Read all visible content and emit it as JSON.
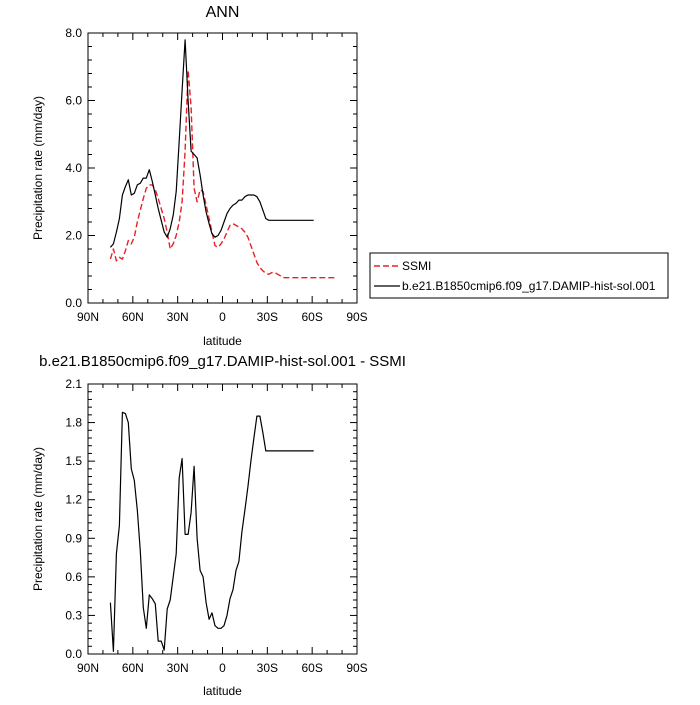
{
  "chart_data": [
    {
      "type": "line",
      "title": "ANN",
      "xlabel": "latitude",
      "ylabel": "Precipitation rate (mm/day)",
      "xlim": [
        90,
        -90
      ],
      "ylim": [
        0,
        8
      ],
      "x_ticks": [
        {
          "value": 90,
          "label": "90N"
        },
        {
          "value": 60,
          "label": "60N"
        },
        {
          "value": 30,
          "label": "30N"
        },
        {
          "value": 0,
          "label": "0"
        },
        {
          "value": -30,
          "label": "30S"
        },
        {
          "value": -60,
          "label": "60S"
        },
        {
          "value": -90,
          "label": "90S"
        }
      ],
      "y_ticks": [
        {
          "value": 0,
          "label": "0.0"
        },
        {
          "value": 2,
          "label": "2.0"
        },
        {
          "value": 4,
          "label": "4.0"
        },
        {
          "value": 6,
          "label": "6.0"
        },
        {
          "value": 8,
          "label": "8.0"
        }
      ],
      "legend_position": "right",
      "series": [
        {
          "name": "SSMI",
          "color": "#e8202a",
          "dashed": true,
          "x": [
            75,
            73,
            71,
            69,
            67,
            65,
            63,
            61,
            59,
            57,
            55,
            53,
            51,
            49,
            47,
            45,
            43,
            41,
            39,
            37,
            35,
            33,
            31,
            29,
            27,
            25,
            23,
            21,
            19,
            17,
            15,
            13,
            11,
            9,
            7,
            5,
            3,
            1,
            -1,
            -3,
            -5,
            -7,
            -9,
            -11,
            -13,
            -15,
            -17,
            -19,
            -21,
            -23,
            -25,
            -27,
            -29,
            -31,
            -33,
            -35,
            -37,
            -39,
            -41,
            -43,
            -45,
            -47,
            -49,
            -51,
            -53,
            -55,
            -57,
            -59,
            -61,
            -63,
            -65,
            -67,
            -69,
            -71,
            -73,
            -75
          ],
          "values": [
            1.3,
            1.6,
            1.25,
            1.35,
            1.3,
            1.55,
            1.85,
            1.75,
            1.95,
            2.4,
            2.75,
            3.1,
            3.4,
            3.5,
            3.5,
            3.35,
            3.1,
            2.8,
            2.5,
            2.1,
            1.6,
            1.75,
            2.0,
            2.4,
            3.0,
            4.5,
            6.9,
            5.8,
            3.4,
            3.0,
            3.35,
            3.3,
            2.9,
            2.5,
            2.1,
            1.7,
            1.65,
            1.75,
            1.9,
            2.1,
            2.3,
            2.35,
            2.3,
            2.25,
            2.2,
            2.1,
            1.95,
            1.7,
            1.45,
            1.2,
            1.05,
            0.95,
            0.88,
            0.85,
            0.9,
            0.9,
            0.85,
            0.8,
            0.75,
            0.75,
            0.75,
            0.75,
            0.75,
            0.75,
            0.75,
            0.75,
            0.75,
            0.75,
            0.75,
            0.75,
            0.75,
            0.75,
            0.75,
            0.75,
            0.75,
            0.75
          ]
        },
        {
          "name": "b.e21.B1850cmip6.f09_g17.DAMIP-hist-sol.001",
          "color": "#000000",
          "dashed": false,
          "x": [
            75,
            73,
            71,
            69,
            67,
            65,
            63,
            61,
            59,
            57,
            55,
            53,
            51,
            49,
            47,
            45,
            43,
            41,
            39,
            37,
            35,
            33,
            31,
            29,
            27,
            25,
            23,
            21,
            19,
            17,
            15,
            13,
            11,
            9,
            7,
            5,
            3,
            1,
            -1,
            -3,
            -5,
            -7,
            -9,
            -11,
            -13,
            -15,
            -17,
            -19,
            -21,
            -23,
            -25,
            -27,
            -29,
            -31,
            -33,
            -35,
            -37,
            -39,
            -41,
            -43,
            -45,
            -47,
            -49,
            -51,
            -53,
            -55,
            -57,
            -59,
            -61
          ],
          "values": [
            1.65,
            1.75,
            2.1,
            2.5,
            3.2,
            3.45,
            3.65,
            3.2,
            3.25,
            3.5,
            3.55,
            3.7,
            3.7,
            3.95,
            3.6,
            3.2,
            2.8,
            2.45,
            2.1,
            1.95,
            2.2,
            2.6,
            3.3,
            4.8,
            6.3,
            7.8,
            6.0,
            4.5,
            4.4,
            4.3,
            3.8,
            3.2,
            2.7,
            2.35,
            2.05,
            1.95,
            2.0,
            2.15,
            2.4,
            2.65,
            2.8,
            2.9,
            2.95,
            3.05,
            3.05,
            3.15,
            3.2,
            3.2,
            3.2,
            3.15,
            3.0,
            2.75,
            2.5,
            2.45,
            2.45,
            2.45,
            2.45,
            2.45,
            2.45,
            2.45,
            2.45,
            2.45,
            2.45,
            2.45,
            2.45,
            2.45,
            2.45,
            2.45,
            2.45
          ]
        }
      ]
    },
    {
      "type": "line",
      "title": "b.e21.B1850cmip6.f09_g17.DAMIP-hist-sol.001 - SSMI",
      "xlabel": "latitude",
      "ylabel": "Precipitation rate (mm/day)",
      "xlim": [
        90,
        -90
      ],
      "ylim": [
        0,
        2.1
      ],
      "x_ticks": [
        {
          "value": 90,
          "label": "90N"
        },
        {
          "value": 60,
          "label": "60N"
        },
        {
          "value": 30,
          "label": "30N"
        },
        {
          "value": 0,
          "label": "0"
        },
        {
          "value": -30,
          "label": "30S"
        },
        {
          "value": -60,
          "label": "60S"
        },
        {
          "value": -90,
          "label": "90S"
        }
      ],
      "y_ticks": [
        {
          "value": 0,
          "label": "0.0"
        },
        {
          "value": 0.3,
          "label": "0.3"
        },
        {
          "value": 0.6,
          "label": "0.6"
        },
        {
          "value": 0.9,
          "label": "0.9"
        },
        {
          "value": 1.2,
          "label": "1.2"
        },
        {
          "value": 1.5,
          "label": "1.5"
        },
        {
          "value": 1.8,
          "label": "1.8"
        },
        {
          "value": 2.1,
          "label": "2.1"
        }
      ],
      "series": [
        {
          "color": "#000000",
          "dashed": false,
          "x": [
            75,
            73,
            71,
            69,
            67,
            65,
            63,
            61,
            59,
            57,
            55,
            53,
            51,
            49,
            47,
            45,
            43,
            41,
            39,
            37,
            35,
            33,
            31,
            29,
            27,
            25,
            23,
            21,
            19,
            17,
            15,
            13,
            11,
            9,
            7,
            5,
            3,
            1,
            -1,
            -3,
            -5,
            -7,
            -9,
            -11,
            -13,
            -15,
            -17,
            -19,
            -21,
            -23,
            -25,
            -27,
            -29,
            -31,
            -33,
            -35,
            -37,
            -39,
            -41,
            -43,
            -45,
            -47,
            -49,
            -51,
            -53,
            -55,
            -57,
            -59,
            -61
          ],
          "values": [
            0.4,
            0.02,
            0.78,
            1.0,
            1.88,
            1.87,
            1.8,
            1.44,
            1.35,
            1.12,
            0.8,
            0.36,
            0.2,
            0.46,
            0.43,
            0.39,
            0.1,
            0.1,
            0.03,
            0.35,
            0.42,
            0.6,
            0.78,
            1.37,
            1.52,
            0.93,
            0.93,
            1.1,
            1.46,
            0.9,
            0.65,
            0.6,
            0.4,
            0.27,
            0.32,
            0.22,
            0.2,
            0.2,
            0.22,
            0.3,
            0.43,
            0.5,
            0.65,
            0.72,
            0.95,
            1.12,
            1.3,
            1.5,
            1.68,
            1.85,
            1.85,
            1.72,
            1.58,
            1.58,
            1.58,
            1.58,
            1.58,
            1.58,
            1.58,
            1.58,
            1.58,
            1.58,
            1.58,
            1.58,
            1.58,
            1.58,
            1.58,
            1.58,
            1.58
          ]
        }
      ]
    }
  ]
}
